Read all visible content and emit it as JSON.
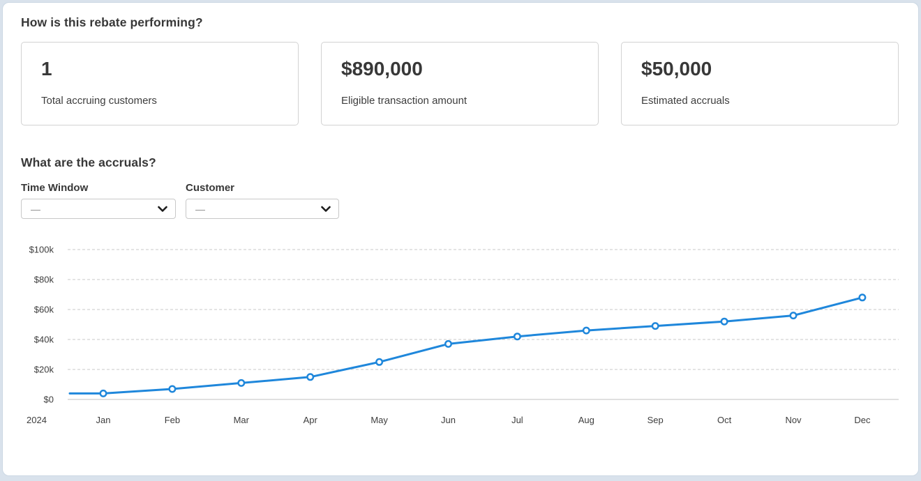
{
  "performance_section": {
    "heading": "How is this rebate performing?",
    "cards": [
      {
        "value": "1",
        "label": "Total accruing customers"
      },
      {
        "value": "$890,000",
        "label": "Eligible transaction amount"
      },
      {
        "value": "$50,000",
        "label": "Estimated accruals"
      }
    ]
  },
  "accruals_section": {
    "heading": "What are the accruals?",
    "filters": [
      {
        "label": "Time Window",
        "value": "—"
      },
      {
        "label": "Customer",
        "value": "—"
      }
    ]
  },
  "chart_data": {
    "type": "line",
    "year_label": "2024",
    "categories": [
      "Jan",
      "Feb",
      "Mar",
      "Apr",
      "May",
      "Jun",
      "Jul",
      "Aug",
      "Sep",
      "Oct",
      "Nov",
      "Dec"
    ],
    "values": [
      4000,
      7000,
      11000,
      15000,
      25000,
      37000,
      42000,
      46000,
      49000,
      52000,
      56000,
      68000
    ],
    "lead_in_value": 4000,
    "ylim": [
      0,
      100000
    ],
    "ytick_step": 20000,
    "ytick_labels": [
      "$0",
      "$20k",
      "$40k",
      "$60k",
      "$80k",
      "$100k"
    ],
    "xlabel": "",
    "ylabel": "",
    "grid": true,
    "legend": "none",
    "markers": true,
    "line_color": "#1f87db",
    "grid_color": "#cacaca",
    "axis_color": "#c2c2c2",
    "label_color": "#3d3d3d"
  }
}
